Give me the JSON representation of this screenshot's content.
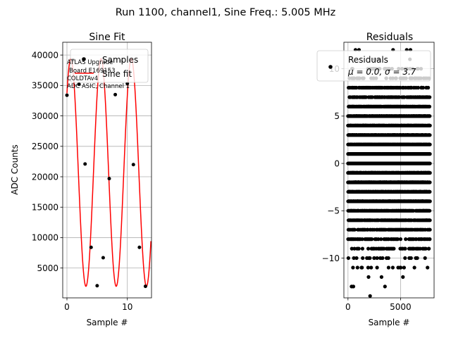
{
  "suptitle": "Run 1100, channel1, Sine Freq.: 5.005 MHz",
  "chart_data": [
    {
      "type": "line",
      "title": "Sine Fit",
      "xlabel": "Sample #",
      "ylabel": "ADC Counts",
      "xlim": [
        -0.7,
        14.0
      ],
      "ylim": [
        100,
        42100
      ],
      "grid": true,
      "legend_position": "top-right",
      "x_ticks": [
        0,
        10
      ],
      "y_ticks": [
        5000,
        10000,
        15000,
        20000,
        25000,
        30000,
        35000,
        40000
      ],
      "x_tick_labels": [
        "0",
        "10"
      ],
      "y_tick_labels": [
        "5000",
        "10000",
        "15000",
        "20000",
        "25000",
        "30000",
        "35000",
        "40000"
      ],
      "series": [
        {
          "name": "Samples",
          "kind": "scatter",
          "color": "#000000",
          "x": [
            0,
            1,
            2,
            3,
            4,
            5,
            6,
            7,
            8,
            9,
            10,
            11,
            12,
            13
          ],
          "y": [
            33400,
            39200,
            35200,
            22100,
            8400,
            2100,
            6700,
            19700,
            33500,
            39000,
            35300,
            22000,
            8400,
            2000
          ]
        },
        {
          "name": "Sine fit",
          "kind": "line",
          "color": "#ff0000",
          "model": {
            "amplitude": 18700,
            "offset": 20700,
            "period": 5.01,
            "phase": 0.77
          },
          "x_range": [
            0,
            13.9
          ]
        }
      ],
      "annotation": [
        "ATLAS Upgrade",
        "Board E169153",
        "COLDTAv4",
        "ADC ASIC, Channel 1"
      ]
    },
    {
      "type": "scatter",
      "title": "Residuals",
      "xlabel": "Sample #",
      "ylabel": "",
      "xlim": [
        -390,
        8190
      ],
      "ylim": [
        -14.2,
        12.8
      ],
      "grid": true,
      "legend_position": "top-right",
      "x_ticks": [
        0,
        5000
      ],
      "y_ticks": [
        -10,
        -5,
        0,
        5,
        10
      ],
      "x_tick_labels": [
        "0",
        "5000"
      ],
      "y_tick_labels": [
        "−10",
        "−5",
        "0",
        "5",
        "10"
      ],
      "series": [
        {
          "name": "Residuals",
          "color": "#000000",
          "count": 8000,
          "mean": 0.0,
          "std": 3.7,
          "x_range": [
            0,
            7800
          ]
        }
      ],
      "legend_stats": "μ = 0.0, σ = 3.7"
    }
  ]
}
